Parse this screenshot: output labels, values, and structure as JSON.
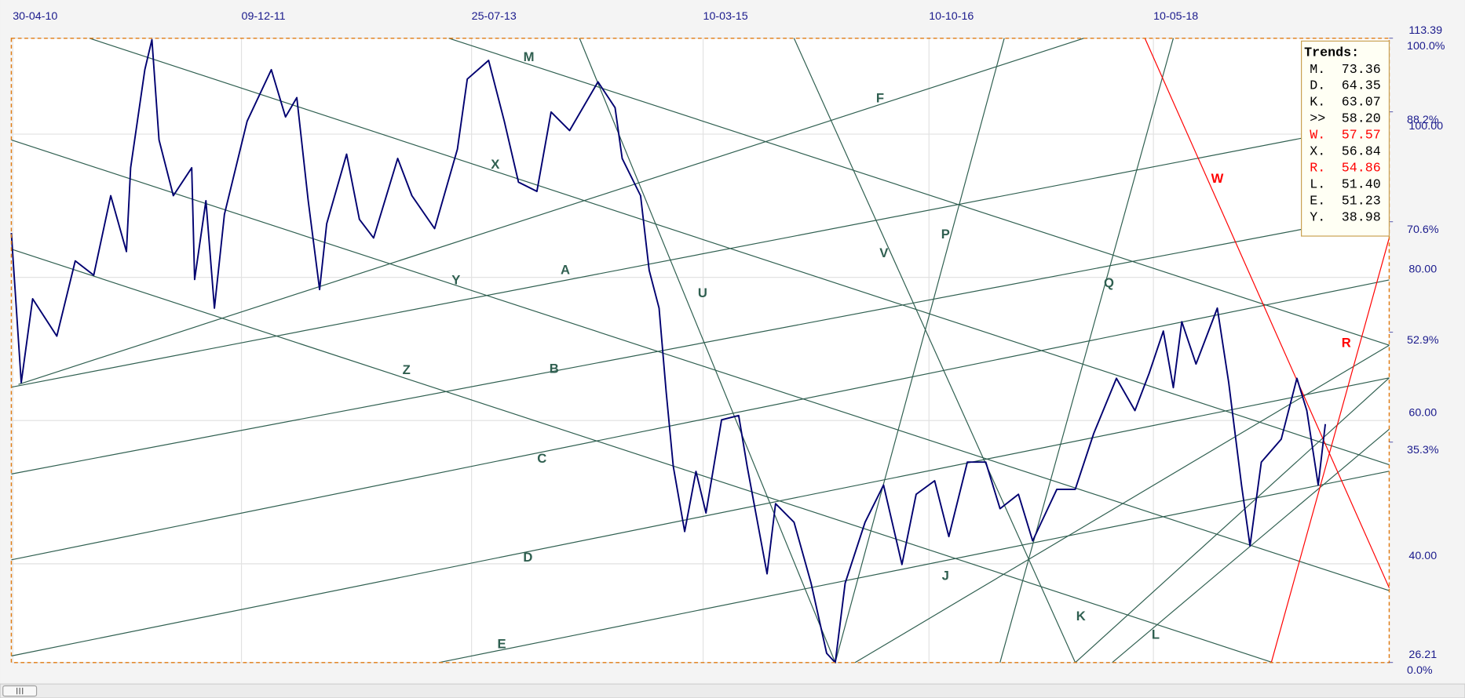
{
  "chart_data": {
    "type": "line",
    "xlim": [
      2010.32,
      2020.02
    ],
    "xticks": [
      {
        "value": 2010.33,
        "label": "30-04-10"
      },
      {
        "value": 2011.94,
        "label": "09-12-11"
      },
      {
        "value": 2013.56,
        "label": "25-07-13"
      },
      {
        "value": 2015.19,
        "label": "10-03-15"
      },
      {
        "value": 2016.78,
        "label": "10-10-16"
      },
      {
        "value": 2018.36,
        "label": "10-05-18"
      }
    ],
    "ylim": [
      26.21,
      113.39
    ],
    "yticks": [
      113.39,
      {
        "value": 100,
        "label": "100.00"
      },
      {
        "value": 80,
        "label": "80.00"
      },
      {
        "value": 60,
        "label": "60.00"
      },
      {
        "value": 40,
        "label": "40.00"
      },
      26.21
    ],
    "y2lim": [
      0,
      100
    ],
    "y2ticks": [
      {
        "value": 100,
        "label": "100.0%"
      },
      {
        "value": 88.2,
        "label": "88.2%"
      },
      {
        "value": 70.6,
        "label": "70.6%"
      },
      {
        "value": 52.9,
        "label": "52.9%"
      },
      {
        "value": 35.3,
        "label": "35.3%"
      },
      {
        "value": 0,
        "label": "0.0%"
      }
    ],
    "grid": true,
    "series": [
      {
        "color": "#000070",
        "x": [
          2010.32,
          2010.39,
          2010.47,
          2010.64,
          2010.77,
          2010.9,
          2011.02,
          2011.13,
          2011.16,
          2011.26,
          2011.31,
          2011.36,
          2011.46,
          2011.59,
          2011.61,
          2011.69,
          2011.75,
          2011.82,
          2011.98,
          2012.15,
          2012.25,
          2012.33,
          2012.41,
          2012.49,
          2012.54,
          2012.68,
          2012.77,
          2012.87,
          2013.04,
          2013.14,
          2013.3,
          2013.46,
          2013.53,
          2013.68,
          2013.79,
          2013.89,
          2014.02,
          2014.12,
          2014.25,
          2014.45,
          2014.57,
          2014.62,
          2014.75,
          2014.81,
          2014.88,
          2014.93,
          2014.98,
          2015.06,
          2015.14,
          2015.21,
          2015.32,
          2015.44,
          2015.5,
          2015.64,
          2015.7,
          2015.83,
          2015.95,
          2016.06,
          2016.12,
          2016.19,
          2016.33,
          2016.46,
          2016.59,
          2016.69,
          2016.82,
          2016.92,
          2017.05,
          2017.18,
          2017.28,
          2017.41,
          2017.51,
          2017.68,
          2017.81,
          2017.94,
          2018.1,
          2018.23,
          2018.33,
          2018.43,
          2018.5,
          2018.56,
          2018.66,
          2018.81,
          2018.89,
          2018.98,
          2019.04,
          2019.12,
          2019.26,
          2019.37,
          2019.44,
          2019.52,
          2019.57
        ],
        "values": [
          86.2,
          65.3,
          77.0,
          71.8,
          82.3,
          80.3,
          91.4,
          83.6,
          95.3,
          109.0,
          113.2,
          99.2,
          91.4,
          95.3,
          79.7,
          90.7,
          75.7,
          88.8,
          101.8,
          109.0,
          102.4,
          105.1,
          90.7,
          78.3,
          87.5,
          97.2,
          88.1,
          85.5,
          96.6,
          91.4,
          86.8,
          97.9,
          107.7,
          110.3,
          101.8,
          93.3,
          92.0,
          103.1,
          100.5,
          107.3,
          103.7,
          96.6,
          91.4,
          81.0,
          75.7,
          64.0,
          53.6,
          44.5,
          52.9,
          47.1,
          60.1,
          60.7,
          53.6,
          38.6,
          48.4,
          45.8,
          37.3,
          27.5,
          26.2,
          37.3,
          45.8,
          51.0,
          39.9,
          49.7,
          51.6,
          43.8,
          54.2,
          54.2,
          47.7,
          49.7,
          43.2,
          50.4,
          50.4,
          58.2,
          65.9,
          61.4,
          66.6,
          72.5,
          64.6,
          73.8,
          67.9,
          75.7,
          65.3,
          51.0,
          42.5,
          54.2,
          57.4,
          65.9,
          61.4,
          51.0,
          59.5
        ]
      }
    ],
    "trend_lines": [
      {
        "label": "M",
        "color": "#2f5f50",
        "x": [
          2013.4,
          2020.02
        ],
        "values": [
          113.39,
          70.52
        ]
      },
      {
        "label": "X",
        "color": "#2f5f50",
        "x": [
          2010.87,
          2020.02
        ],
        "values": [
          113.39,
          53.84
        ]
      },
      {
        "label": "Y",
        "color": "#2f5f50",
        "x": [
          2010.32,
          2020.02
        ],
        "values": [
          99.19,
          36.25
        ]
      },
      {
        "label": "Z",
        "color": "#2f5f50",
        "x": [
          2010.32,
          2019.2
        ],
        "values": [
          83.94,
          26.21
        ]
      },
      {
        "label": "A",
        "color": "#2f5f50",
        "x": [
          2010.32,
          2020.02
        ],
        "values": [
          64.66,
          101.79
        ]
      },
      {
        "label": "F",
        "color": "#2f5f50",
        "x": [
          2010.37,
          2017.87
        ],
        "values": [
          65.05,
          113.39
        ]
      },
      {
        "label": "B",
        "color": "#2f5f50",
        "x": [
          2010.32,
          2020.02
        ],
        "values": [
          52.54,
          89.02
        ]
      },
      {
        "label": "C",
        "color": "#2f5f50",
        "x": [
          2010.32,
          2020.02
        ],
        "values": [
          40.55,
          79.64
        ]
      },
      {
        "label": "D",
        "color": "#2f5f50",
        "x": [
          2010.32,
          2020.02
        ],
        "values": [
          27.13,
          65.96
        ]
      },
      {
        "label": "E",
        "color": "#2f5f50",
        "x": [
          2013.33,
          2020.02
        ],
        "values": [
          26.21,
          52.93
        ]
      },
      {
        "label": "P",
        "color": "#2f5f50",
        "x": [
          2016.12,
          2017.31
        ],
        "values": [
          26.21,
          113.39
        ]
      },
      {
        "label": "Q",
        "color": "#2f5f50",
        "x": [
          2017.28,
          2018.5
        ],
        "values": [
          26.21,
          113.39
        ]
      },
      {
        "label": "J",
        "color": "#2f5f50",
        "x": [
          2016.26,
          2020.02
        ],
        "values": [
          26.21,
          70.52
        ]
      },
      {
        "label": "K",
        "color": "#2f5f50",
        "x": [
          2017.81,
          2020.02
        ],
        "values": [
          26.21,
          65.96
        ]
      },
      {
        "label": "L",
        "color": "#2f5f50",
        "x": [
          2018.07,
          2020.02
        ],
        "values": [
          26.21,
          58.79
        ]
      },
      {
        "label": "U",
        "color": "#2f5f50",
        "x": [
          2014.32,
          2016.12
        ],
        "values": [
          113.39,
          26.21
        ]
      },
      {
        "label": "V",
        "color": "#2f5f50",
        "x": [
          2015.83,
          2017.81
        ],
        "values": [
          113.39,
          26.21
        ]
      },
      {
        "label": "W",
        "color": "#ff0000",
        "x": [
          2018.3,
          2020.02
        ],
        "values": [
          113.39,
          36.64
        ]
      },
      {
        "label": "R",
        "color": "#ff0000",
        "x": [
          2019.19,
          2020.02
        ],
        "values": [
          26.21,
          85.51
        ]
      }
    ],
    "trends": {
      "title": "Trends:",
      "items": [
        {
          "name": "M.",
          "value": "73.36",
          "color": "#000000"
        },
        {
          "name": "D.",
          "value": "64.35",
          "color": "#000000"
        },
        {
          "name": "K.",
          "value": "63.07",
          "color": "#000000"
        },
        {
          "name": ">>",
          "value": "58.20",
          "color": "#000000"
        },
        {
          "name": "W.",
          "value": "57.57",
          "color": "#ff0000"
        },
        {
          "name": "X.",
          "value": "56.84",
          "color": "#000000"
        },
        {
          "name": "R.",
          "value": "54.86",
          "color": "#ff0000"
        },
        {
          "name": "L.",
          "value": "51.40",
          "color": "#000000"
        },
        {
          "name": "E.",
          "value": "51.23",
          "color": "#000000"
        },
        {
          "name": "Y.",
          "value": "38.98",
          "color": "#000000"
        }
      ]
    }
  }
}
